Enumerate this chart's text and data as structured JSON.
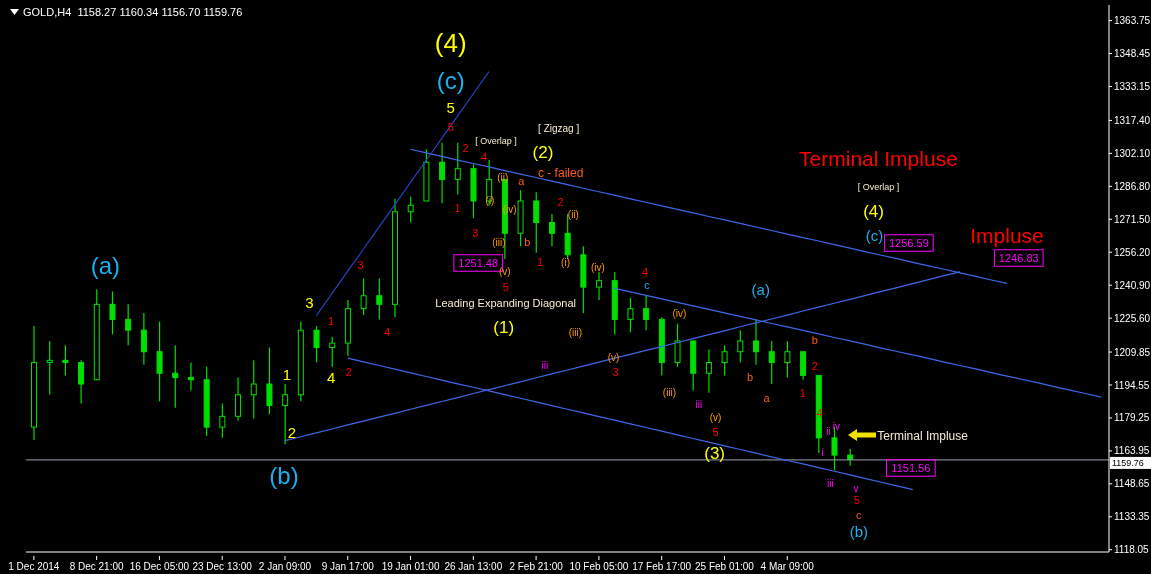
{
  "chart_data": {
    "type": "candlestick",
    "title": "GOLD,H4  1158.27 1160.34 1156.70 1159.76",
    "color": "#00e000",
    "categories": [
      "1 Dec 2014",
      null,
      null,
      null,
      "8 Dec 21:00",
      null,
      null,
      null,
      "16 Dec 05:00",
      null,
      null,
      null,
      "23 Dec 13:00",
      null,
      null,
      null,
      "2 Jan 09:00",
      null,
      null,
      null,
      "9 Jan 17:00",
      null,
      null,
      null,
      "19 Jan 01:00",
      null,
      null,
      null,
      "26 Jan 13:00",
      null,
      null,
      null,
      "2 Feb 21:00",
      null,
      null,
      null,
      "10 Feb 05:00",
      null,
      null,
      null,
      "17 Feb 17:00",
      null,
      null,
      null,
      "25 Feb 01:00",
      null,
      null,
      null,
      "4 Mar 09:00",
      null,
      null,
      null,
      null,
      null,
      null,
      null,
      null,
      null,
      null,
      null,
      null,
      null,
      null,
      null,
      null,
      null,
      null,
      null,
      null
    ],
    "ohlc": [
      [
        1175,
        1222,
        1169,
        1205
      ],
      [
        1205,
        1215,
        1190,
        1206
      ],
      [
        1206,
        1213,
        1199,
        1205
      ],
      [
        1205,
        1206,
        1186,
        1195
      ],
      [
        1197,
        1239,
        1197,
        1232
      ],
      [
        1232,
        1238,
        1218,
        1225
      ],
      [
        1225,
        1232,
        1213,
        1220
      ],
      [
        1220,
        1228,
        1204,
        1210
      ],
      [
        1210,
        1224,
        1187,
        1200
      ],
      [
        1200,
        1213,
        1184,
        1198
      ],
      [
        1198,
        1205,
        1192,
        1197
      ],
      [
        1197,
        1203,
        1171,
        1175
      ],
      [
        1175,
        1186,
        1170,
        1180
      ],
      [
        1180,
        1198,
        1178,
        1190
      ],
      [
        1190,
        1206,
        1179,
        1195
      ],
      [
        1195,
        1212,
        1181,
        1185
      ],
      [
        1185,
        1195,
        1167,
        1190
      ],
      [
        1190,
        1224,
        1187,
        1220
      ],
      [
        1220,
        1222,
        1205,
        1212
      ],
      [
        1212,
        1217,
        1203,
        1214
      ],
      [
        1214,
        1234,
        1208,
        1230
      ],
      [
        1230,
        1244,
        1227,
        1236
      ],
      [
        1236,
        1244,
        1225,
        1232
      ],
      [
        1232,
        1281,
        1226,
        1275
      ],
      [
        1275,
        1282,
        1270,
        1278
      ],
      [
        1280,
        1304,
        1280,
        1298
      ],
      [
        1298,
        1307,
        1279,
        1290
      ],
      [
        1290,
        1307,
        1283,
        1295
      ],
      [
        1295,
        1297,
        1272,
        1280
      ],
      [
        1280,
        1299,
        1278,
        1290
      ],
      [
        1290,
        1290,
        1253,
        1265
      ],
      [
        1265,
        1285,
        1259,
        1280
      ],
      [
        1280,
        1284,
        1256,
        1270
      ],
      [
        1270,
        1274,
        1259,
        1265
      ],
      [
        1265,
        1274,
        1253,
        1255
      ],
      [
        1255,
        1259,
        1228,
        1240
      ],
      [
        1240,
        1247,
        1234,
        1243
      ],
      [
        1243,
        1247,
        1218,
        1225
      ],
      [
        1225,
        1235,
        1219,
        1230
      ],
      [
        1230,
        1236,
        1220,
        1225
      ],
      [
        1225,
        1226,
        1199,
        1205
      ],
      [
        1205,
        1223,
        1203,
        1215
      ],
      [
        1215,
        1215,
        1192,
        1200
      ],
      [
        1200,
        1211,
        1191,
        1205
      ],
      [
        1205,
        1213,
        1199,
        1210
      ],
      [
        1210,
        1220,
        1205,
        1215
      ],
      [
        1215,
        1225,
        1204,
        1210
      ],
      [
        1210,
        1215,
        1195,
        1205
      ],
      [
        1205,
        1215,
        1198,
        1210
      ],
      [
        1210,
        1210,
        1197,
        1199
      ],
      [
        1199,
        1199,
        1163,
        1170
      ],
      [
        1170,
        1175,
        1155,
        1162
      ],
      [
        1162,
        1165,
        1157,
        1160
      ],
      null,
      null,
      null,
      null,
      null,
      null,
      null,
      null,
      null,
      null,
      null,
      null,
      null,
      null,
      null,
      null
    ],
    "ylim": [
      1117,
      1371
    ],
    "yticks": [
      1363.75,
      1348.45,
      1333.15,
      {
        "value": 1317.4,
        "label": "1317.40"
      },
      {
        "value": 1302.1,
        "label": "1302.10"
      },
      {
        "value": 1286.8,
        "label": "1286.80"
      },
      {
        "value": 1271.5,
        "label": "1271.50"
      },
      {
        "value": 1256.2,
        "label": "1256.20"
      },
      {
        "value": 1240.9,
        "label": "1240.90"
      },
      {
        "value": 1225.6,
        "label": "1225.60"
      },
      1209.85,
      1194.55,
      1179.25,
      1163.95,
      1148.65,
      1133.35,
      1118.05
    ],
    "series": [
      {
        "type": "line",
        "color": "#3f67e8",
        "values": [
          null,
          null,
          null,
          null,
          null,
          null,
          null,
          null,
          null,
          null,
          null,
          null,
          null,
          null,
          null,
          null,
          null,
          null,
          null,
          null,
          null,
          null,
          null,
          null,
          1304.0,
          1302.3,
          1300.7,
          1299.0,
          1297.4,
          1295.8,
          1294.1,
          1292.5,
          1290.9,
          1289.2,
          1287.6,
          1285.9,
          1284.3,
          1282.7,
          1281.0,
          1279.4,
          1277.7,
          1276.1,
          1274.5,
          1272.8,
          1271.2,
          1269.6,
          1267.9,
          1266.3,
          1264.6,
          1263.0,
          1261.4,
          1259.7,
          1258.1,
          1256.4,
          1254.8,
          1253.2,
          1251.5,
          1249.9,
          1248.3,
          1246.6,
          1245.0,
          1243.3,
          1241.7,
          null,
          null,
          null,
          null,
          null,
          null
        ]
      },
      {
        "type": "line",
        "color": "#3f67e8",
        "values": [
          null,
          null,
          null,
          null,
          null,
          null,
          null,
          null,
          null,
          null,
          null,
          null,
          null,
          null,
          null,
          null,
          1168.7,
          1170.5,
          1172.3,
          1174.1,
          1176.0,
          1177.8,
          1179.6,
          1181.4,
          1183.3,
          1185.1,
          1186.9,
          1188.7,
          1190.6,
          1192.4,
          1194.2,
          1196.0,
          1197.9,
          1199.7,
          1201.5,
          1203.3,
          1205.2,
          1207.0,
          1208.8,
          1210.6,
          1212.4,
          1214.3,
          1216.1,
          1217.9,
          1219.7,
          1221.6,
          1223.4,
          1225.2,
          1227.0,
          1228.9,
          1230.7,
          1232.5,
          1234.3,
          1236.2,
          1238.0,
          1239.8,
          1241.6,
          1243.5,
          1245.3,
          1247.1,
          null,
          null,
          null,
          null,
          null,
          null,
          null,
          null,
          null
        ]
      },
      {
        "type": "line",
        "color": "#3f67e8",
        "values": [
          null,
          null,
          null,
          null,
          null,
          null,
          null,
          null,
          null,
          null,
          null,
          null,
          null,
          null,
          null,
          null,
          null,
          null,
          null,
          null,
          1207.0,
          1205.3,
          1203.6,
          1201.9,
          1200.2,
          1198.5,
          1196.8,
          1195.1,
          1193.5,
          1191.8,
          1190.1,
          1188.4,
          1186.7,
          1185.0,
          1183.3,
          1181.6,
          1179.9,
          1178.2,
          1176.5,
          1174.8,
          1173.1,
          1171.4,
          1169.7,
          1168.0,
          1166.3,
          1164.6,
          1162.9,
          1161.2,
          1159.5,
          1157.9,
          1156.2,
          1154.5,
          1152.8,
          1151.1,
          1149.4,
          1147.7,
          1146.0,
          null,
          null,
          null,
          null,
          null,
          null,
          null,
          null,
          null,
          null,
          null,
          null
        ]
      },
      {
        "type": "line",
        "color": "#3f67e8",
        "values": [
          null,
          null,
          null,
          null,
          null,
          null,
          null,
          null,
          null,
          null,
          null,
          null,
          null,
          null,
          null,
          null,
          null,
          null,
          null,
          null,
          null,
          null,
          null,
          null,
          null,
          null,
          null,
          null,
          null,
          null,
          null,
          null,
          null,
          null,
          null,
          null,
          null,
          1239.4,
          1237.8,
          1236.2,
          1234.5,
          1232.9,
          1231.3,
          1229.7,
          1228.0,
          1226.4,
          1224.8,
          1223.1,
          1221.5,
          1219.9,
          1218.3,
          1216.6,
          1215.0,
          1213.4,
          1211.7,
          1210.1,
          1208.5,
          1206.9,
          1205.2,
          1203.6,
          1202.0,
          1200.3,
          1198.7,
          1197.1,
          1195.5,
          1193.8,
          1192.2,
          1190.6,
          1188.9
        ]
      },
      {
        "type": "line",
        "color": "#2a3fc0",
        "values": [
          null,
          null,
          null,
          null,
          null,
          null,
          null,
          null,
          null,
          null,
          null,
          null,
          null,
          null,
          null,
          null,
          null,
          null,
          1226.8,
          1237.1,
          1247.4,
          1257.7,
          1268.0,
          1278.3,
          1288.6,
          1298.9,
          1309.2,
          1319.5,
          1329.8,
          1340.1,
          null,
          null,
          null,
          null,
          null,
          null,
          null,
          null,
          null,
          null,
          null,
          null,
          null,
          null,
          null,
          null,
          null,
          null,
          null,
          null,
          null,
          null,
          null,
          null,
          null,
          null,
          null,
          null,
          null,
          null,
          null,
          null,
          null,
          null,
          null,
          null,
          null,
          null,
          null
        ]
      }
    ],
    "ref_lines": [
      {
        "axis": "y",
        "value": 1159.76,
        "label": "1159.76",
        "color": "#9aa4b0"
      }
    ],
    "annotations": [
      "(4)",
      "(c)",
      "5",
      "5",
      "(a)",
      "(b)",
      "3",
      "1",
      "2",
      "4",
      "1",
      "2",
      "3",
      "4",
      "[ Overlap ]",
      "[ Zigzag ]",
      "(2)",
      "c - failed",
      "1251.48",
      "Leading Expanding Diagonal",
      "(1)",
      "2",
      "4",
      "1",
      "3",
      "5",
      "(i)",
      "(ii)",
      "(iii)",
      "(iv)",
      "(v)",
      "a",
      "b",
      "1",
      "2",
      "(i)",
      "(ii)",
      "(iii)",
      "(iv)",
      "4",
      "c",
      "3",
      "(v)",
      "(iii)",
      "(iv)",
      "(v)",
      "5",
      "iii",
      "iii",
      "(3)",
      "(a)",
      "a",
      "b",
      "b",
      "2",
      "1",
      "4",
      "iv",
      "ii",
      "i",
      "iii",
      "v",
      "5",
      "c",
      "(b)",
      "Terminal Impluse",
      "[ Overlap ]",
      "(4)",
      "(c)",
      "Impluse",
      "1256.59",
      "1246.83",
      "Terminal Impluse",
      "1151.56"
    ]
  }
}
